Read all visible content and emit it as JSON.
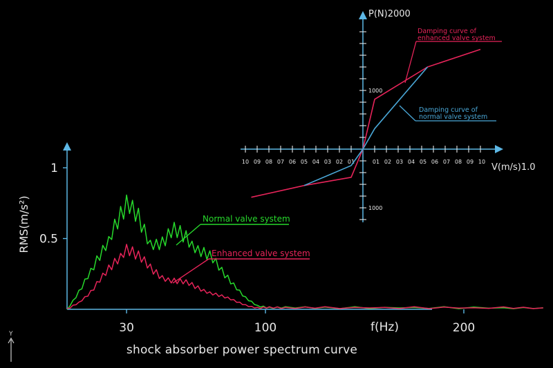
{
  "caption": "shock absorber power spectrum curve",
  "corner_axis_label": "Y",
  "colors": {
    "normal": "#27d92c",
    "enhanced": "#e8245a",
    "axis_light": "#5db8e6",
    "damping_normal": "#4aa8d8",
    "text": "#e8e8e8"
  },
  "chart_data": [
    {
      "type": "line",
      "ylabel": "RMS(m/s²)",
      "xlabel": "f(Hz)",
      "x_ticks": [
        30,
        100,
        200
      ],
      "x_tick_labels": [
        "30",
        "100",
        "200"
      ],
      "y_ticks": [
        0.5,
        1
      ],
      "y_tick_labels": [
        "0.5",
        "1"
      ],
      "xlim": [
        0,
        260
      ],
      "ylim": [
        0,
        1.1
      ],
      "series": [
        {
          "name": "Normal valve system",
          "x": [
            0,
            6,
            12,
            18,
            24,
            30,
            36,
            42,
            48,
            54,
            60,
            66,
            72,
            78,
            84,
            90,
            96,
            102,
            110,
            130,
            160,
            190,
            220,
            240
          ],
          "y": [
            0.0,
            0.12,
            0.25,
            0.42,
            0.6,
            0.7,
            0.63,
            0.48,
            0.46,
            0.53,
            0.51,
            0.43,
            0.36,
            0.26,
            0.18,
            0.08,
            0.02,
            0.01,
            0.01,
            0.01,
            0.01,
            0.01,
            0.01,
            0.01
          ]
        },
        {
          "name": "Enhanced valve system",
          "x": [
            0,
            6,
            12,
            18,
            24,
            30,
            36,
            42,
            48,
            54,
            60,
            66,
            72,
            78,
            84,
            90,
            96,
            102,
            110,
            130,
            160,
            190,
            220,
            240
          ],
          "y": [
            0.0,
            0.05,
            0.12,
            0.22,
            0.33,
            0.44,
            0.36,
            0.28,
            0.23,
            0.2,
            0.18,
            0.15,
            0.12,
            0.09,
            0.06,
            0.03,
            0.01,
            0.01,
            0.01,
            0.01,
            0.01,
            0.01,
            0.01,
            0.01
          ]
        }
      ]
    },
    {
      "type": "line",
      "ylabel": "P(N)2000",
      "xlabel": "V(m/s)1.0",
      "x_tick_labels_negative": [
        "10",
        "09",
        "08",
        "07",
        "06",
        "05",
        "04",
        "03",
        "02",
        "01"
      ],
      "x_tick_labels_positive": [
        "01",
        "02",
        "03",
        "04",
        "05",
        "06",
        "07",
        "08",
        "09",
        "10"
      ],
      "y_tick_labels": [
        "1000",
        "1000"
      ],
      "xlim": [
        -1.0,
        1.0
      ],
      "ylim": [
        -2000,
        2000
      ],
      "series": [
        {
          "name": "Damping curve of enhanced valve system",
          "x": [
            -0.95,
            -0.5,
            -0.1,
            0.0,
            0.1,
            0.55,
            1.0
          ],
          "y": [
            -820,
            -620,
            -480,
            0,
            850,
            1400,
            1700
          ]
        },
        {
          "name": "Damping curve of normal valve system",
          "x": [
            -0.5,
            -0.1,
            0.0,
            0.1,
            0.55
          ],
          "y": [
            -620,
            -280,
            0,
            350,
            1400
          ]
        }
      ]
    }
  ]
}
